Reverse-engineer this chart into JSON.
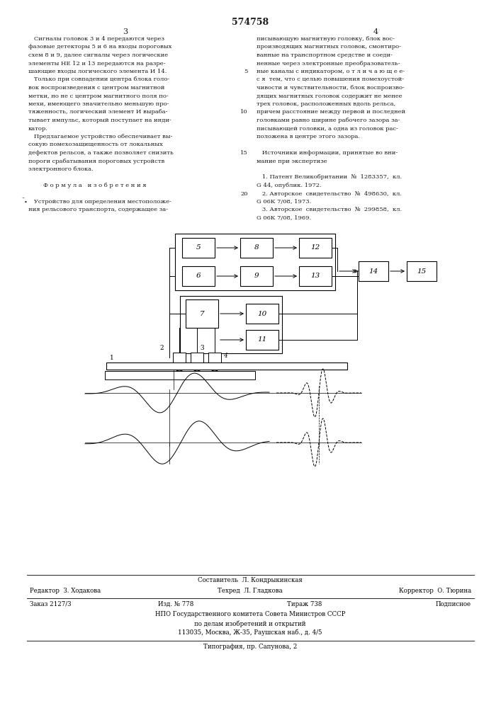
{
  "title": "574758",
  "page_left": "3",
  "page_right": "4",
  "col_left_text": [
    "   Сигналы головок 3 и 4 передаются через",
    "фазовые детекторы 5 и 6 на входы пороговых",
    "схем 8 и 9, далее сигналы через логические",
    "элементы НЕ 12 и 13 передаются на разре-",
    "шающие входы логического элемента И 14.",
    "   Только при совпадении центра блока голо-",
    "вок воспроизведения с центром магнитной",
    "метки, но не с центром магнитного поля по-",
    "мехи, имеющего значительно меньшую про-",
    "тяженность, логический элемент И выраба-",
    "тывает импульс, который поступает на инди-",
    "катор.",
    "   Предлагаемое устройство обеспечивает вы-",
    "сокую помехозащищенность от локальных",
    "дефектов рельсов, а также позволяет снизить",
    "пороги срабатывания пороговых устройств",
    "электронного блока.",
    "",
    "        Ф о р м у л а   и з о б р е т е н и я",
    "",
    "   Устройство для определения местоположе-",
    "ния рельсового транспорта, содержащее за-"
  ],
  "col_right_text": [
    "писывающую магнитную головку, блок вос-",
    "производящих магнитных головок, смонтиро-",
    "ванные на транспортном средстве и соеди-",
    "ненные через электронные преобразователь-",
    "ные каналы с индикатором, о т л и ч а ю щ е е-",
    "с я  тем, что с целью повышения помехоустой-",
    "чивости и чувствительности, блок воспроизво-",
    "дящих магнитных головок содержит не менее",
    "трех головок, расположенных вдоль рельса,",
    "причем расстояние между первой и последней",
    "головками равно ширине рабочего зазора за-",
    "писывающей головки, а одна из головок рас-",
    "положена в центре этого зазора.",
    "",
    "   Источники информации, принятые во вни-",
    "мание при экспертизе",
    "",
    "   1. Патент Великобритании  №  1283357,  кл.",
    "G 44, опублик. 1972.",
    "   2. Авторское  свидетельство  №  498630,  кл.",
    "G 06К 7/08, 1973.",
    "   3. Авторское  свидетельство  №  299858,  кл.",
    "G 06К 7/08, 1969."
  ],
  "footer_compiler": "Составитель  Л. Кондрыкинская",
  "footer_editor": "Редактор  З. Ходакова",
  "footer_tech": "Техред  Л. Гладкова",
  "footer_corrector": "Корректор  О. Тюрина",
  "footer_order": "Заказ 2127/3",
  "footer_issue": "Изд. № 778",
  "footer_circulation": "Тираж 738",
  "footer_subscription": "Подписное",
  "footer_npo_line1": "НПО Государственного комитета Совета Министров СССР",
  "footer_npo_line2": "по делам изобретений и открытий",
  "footer_npo_line3": "113035, Москва, Ж-35, Раушская наб., д. 4/5",
  "footer_printing": "Типография, пр. Сапунова, 2",
  "bg_color": "#ffffff",
  "text_color": "#1a1a1a"
}
